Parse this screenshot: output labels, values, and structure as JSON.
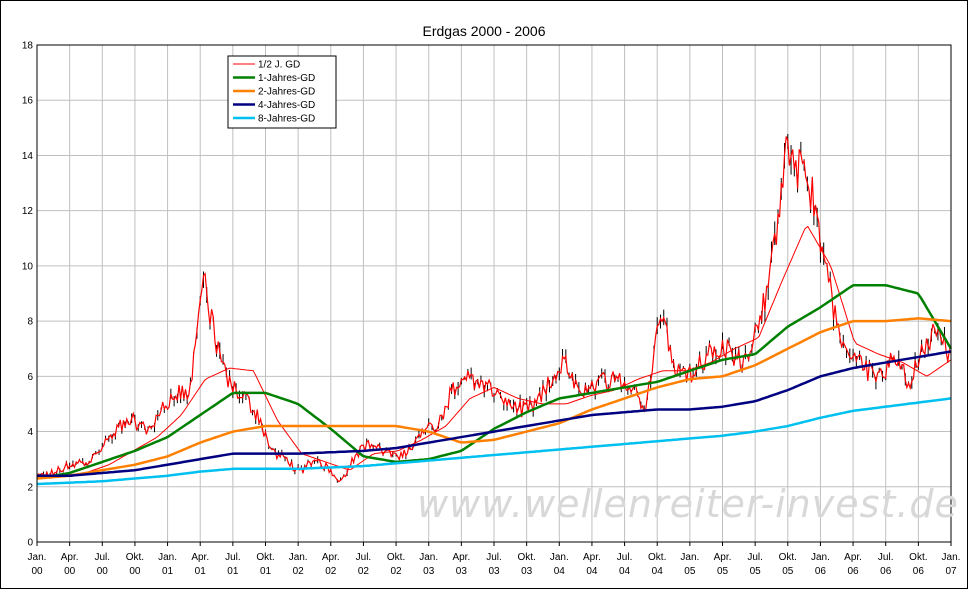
{
  "chart_data": {
    "type": "line",
    "title": "Erdgas 2000 - 2006",
    "xlabel": "",
    "ylabel": "",
    "ylim": [
      0,
      18
    ],
    "yticks": [
      0,
      2,
      4,
      6,
      8,
      10,
      12,
      14,
      16,
      18
    ],
    "grid": true,
    "legend_position": "top-left",
    "x_tick_labels": [
      {
        "month": "Jan.",
        "year": "00"
      },
      {
        "month": "Apr.",
        "year": "00"
      },
      {
        "month": "Jul.",
        "year": "00"
      },
      {
        "month": "Okt.",
        "year": "00"
      },
      {
        "month": "Jan.",
        "year": "01"
      },
      {
        "month": "Apr.",
        "year": "01"
      },
      {
        "month": "Jul.",
        "year": "01"
      },
      {
        "month": "Okt.",
        "year": "01"
      },
      {
        "month": "Jan.",
        "year": "02"
      },
      {
        "month": "Apr.",
        "year": "02"
      },
      {
        "month": "Jul.",
        "year": "02"
      },
      {
        "month": "Okt.",
        "year": "02"
      },
      {
        "month": "Jan.",
        "year": "03"
      },
      {
        "month": "Apr.",
        "year": "03"
      },
      {
        "month": "Jul.",
        "year": "03"
      },
      {
        "month": "Okt.",
        "year": "03"
      },
      {
        "month": "Jan.",
        "year": "04"
      },
      {
        "month": "Apr.",
        "year": "04"
      },
      {
        "month": "Jul.",
        "year": "04"
      },
      {
        "month": "Okt.",
        "year": "04"
      },
      {
        "month": "Jan.",
        "year": "05"
      },
      {
        "month": "Apr.",
        "year": "05"
      },
      {
        "month": "Jul.",
        "year": "05"
      },
      {
        "month": "Okt.",
        "year": "05"
      },
      {
        "month": "Jan.",
        "year": "06"
      },
      {
        "month": "Apr.",
        "year": "06"
      },
      {
        "month": "Jul.",
        "year": "06"
      },
      {
        "month": "Okt.",
        "year": "06"
      },
      {
        "month": "Jan.",
        "year": "07"
      }
    ],
    "price_series": {
      "color": "#ff0000",
      "wick_color": "#000000",
      "values": [
        2.3,
        2.5,
        2.7,
        2.9,
        3.0,
        3.6,
        4.2,
        4.4,
        4.0,
        4.8,
        5.4,
        5.3,
        9.6,
        7.0,
        5.6,
        5.3,
        4.5,
        3.2,
        3.0,
        2.5,
        3.0,
        2.7,
        2.2,
        3.2,
        3.5,
        3.3,
        3.0,
        3.4,
        4.1,
        4.3,
        5.5,
        6.0,
        5.6,
        5.5,
        5.0,
        4.8,
        4.9,
        5.8,
        6.6,
        5.5,
        5.5,
        5.9,
        6.0,
        5.5,
        4.9,
        8.6,
        6.5,
        6.0,
        6.5,
        7.0,
        6.9,
        6.5,
        7.8,
        9.7,
        14.0,
        13.5,
        12.5,
        10.0,
        7.2,
        6.8,
        6.2,
        6.0,
        6.8,
        5.7,
        7.0,
        7.8,
        6.5
      ]
    },
    "series": [
      {
        "name": "1/2 J. GD",
        "color": "#ff0000",
        "stroke": 1,
        "values": [
          2.3,
          2.4,
          2.5,
          2.8,
          3.3,
          3.8,
          4.6,
          5.9,
          6.3,
          6.2,
          4.4,
          3.2,
          2.9,
          2.6,
          3.2,
          3.3,
          3.7,
          4.2,
          5.2,
          5.6,
          5.2,
          5.0,
          5.0,
          5.3,
          5.5,
          5.9,
          6.2,
          6.2,
          6.5,
          7.0,
          7.4,
          9.5,
          11.5,
          10.0,
          7.2,
          6.8,
          6.5,
          6.0,
          6.6
        ]
      },
      {
        "name": "1-Jahres-GD",
        "color": "#008000",
        "stroke": 2.5,
        "values": [
          2.3,
          2.5,
          2.9,
          3.3,
          3.8,
          4.6,
          5.4,
          5.4,
          5.0,
          4.1,
          3.1,
          2.9,
          3.0,
          3.3,
          4.1,
          4.7,
          5.2,
          5.4,
          5.6,
          5.8,
          6.2,
          6.6,
          6.8,
          7.8,
          8.5,
          9.3,
          9.3,
          9.0,
          7.0
        ]
      },
      {
        "name": "2-Jahres-GD",
        "color": "#ff8000",
        "stroke": 2.5,
        "values": [
          2.3,
          2.4,
          2.6,
          2.8,
          3.1,
          3.6,
          4.0,
          4.2,
          4.2,
          4.2,
          4.2,
          4.2,
          4.0,
          3.6,
          3.7,
          4.0,
          4.3,
          4.8,
          5.2,
          5.6,
          5.9,
          6.0,
          6.4,
          7.0,
          7.6,
          8.0,
          8.0,
          8.1,
          8.0
        ]
      },
      {
        "name": "4-Jahres-GD",
        "color": "#000080",
        "stroke": 2.5,
        "values": [
          2.4,
          2.4,
          2.5,
          2.6,
          2.8,
          3.0,
          3.2,
          3.2,
          3.2,
          3.25,
          3.3,
          3.4,
          3.6,
          3.8,
          4.0,
          4.2,
          4.4,
          4.6,
          4.7,
          4.8,
          4.8,
          4.9,
          5.1,
          5.5,
          6.0,
          6.3,
          6.5,
          6.7,
          6.9
        ]
      },
      {
        "name": "8-Jahres-GD",
        "color": "#00c0f0",
        "stroke": 2.5,
        "values": [
          2.1,
          2.15,
          2.2,
          2.3,
          2.4,
          2.55,
          2.65,
          2.65,
          2.65,
          2.7,
          2.75,
          2.85,
          2.95,
          3.05,
          3.15,
          3.25,
          3.35,
          3.45,
          3.55,
          3.65,
          3.75,
          3.85,
          4.0,
          4.2,
          4.5,
          4.75,
          4.9,
          5.05,
          5.2
        ]
      }
    ],
    "watermark": "www.wellenreiter-invest.de"
  }
}
